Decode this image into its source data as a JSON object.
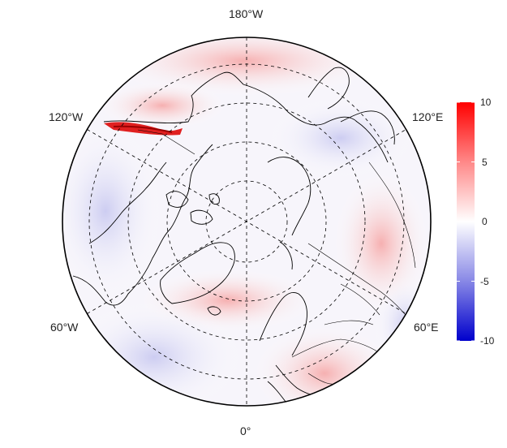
{
  "map": {
    "projection": "north-polar-stereographic",
    "longitude_labels": {
      "top": "180°W",
      "bottom": "0°",
      "upper_left": "120°W",
      "upper_right": "120°E",
      "lower_left": "60°W",
      "lower_right": "60°E"
    },
    "graticule": "dashed",
    "coastlines": true,
    "country_borders": true,
    "field": "diverging anomaly field (blue negative, red positive)",
    "highlight_regions": [
      {
        "name": "strong-positive-alaska-coast",
        "sign": "positive",
        "level": 10
      },
      {
        "name": "positive-arctic-pacific",
        "sign": "positive",
        "level": 3
      },
      {
        "name": "positive-europe",
        "sign": "positive",
        "level": 3
      },
      {
        "name": "negative-north-america",
        "sign": "negative",
        "level": -2
      },
      {
        "name": "negative-siberia",
        "sign": "negative",
        "level": -2
      }
    ]
  },
  "colorbar": {
    "min": -10,
    "max": 10,
    "ticks": [
      "10",
      "5",
      "0",
      "-5",
      "-10"
    ],
    "colors": {
      "high": "#ff0000",
      "mid": "#ffffff",
      "low": "#0000cc"
    }
  }
}
